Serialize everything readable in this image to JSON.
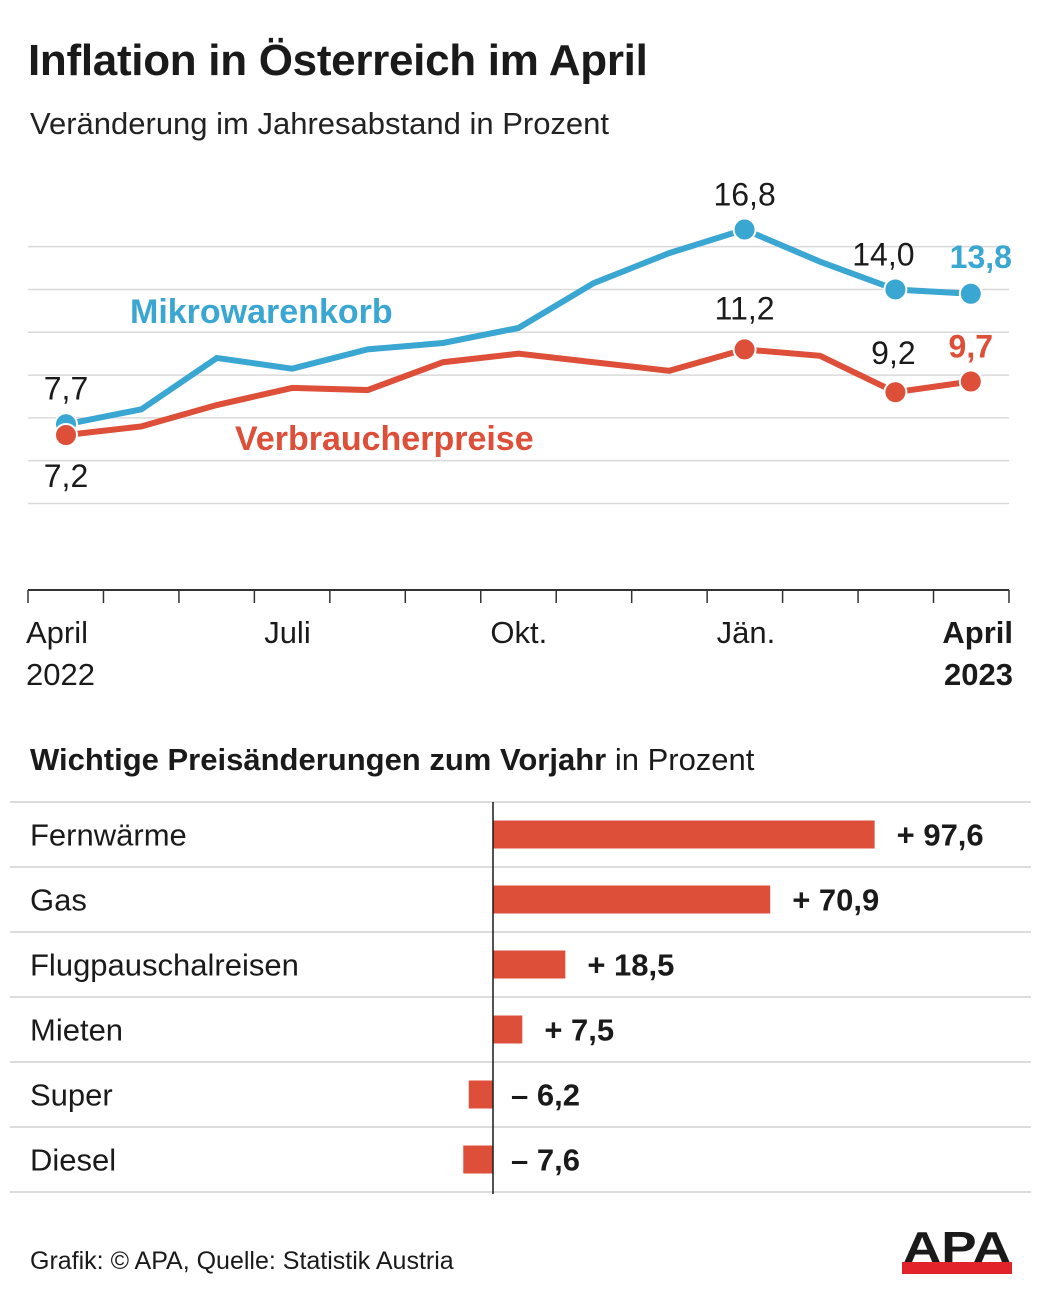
{
  "title": "Inflation in Österreich im April",
  "subtitle": "Veränderung im Jahresabstand in Prozent",
  "colors": {
    "blue": "#3aa6d2",
    "red": "#dd4f38",
    "grid": "#d9d9d9",
    "text": "#1a1a1a"
  },
  "chart_data": [
    {
      "type": "line",
      "title": "Inflation in Österreich im April",
      "subtitle": "Veränderung im Jahresabstand in Prozent",
      "x": [
        "Apr 2022",
        "Mai 2022",
        "Jun 2022",
        "Jul 2022",
        "Aug 2022",
        "Sep 2022",
        "Okt 2022",
        "Nov 2022",
        "Dez 2022",
        "Jän 2023",
        "Feb 2023",
        "Mär 2023",
        "Apr 2023"
      ],
      "xtick_labels": [
        {
          "index": 0,
          "lines": [
            "April",
            "2022"
          ],
          "bold": false
        },
        {
          "index": 3,
          "lines": [
            "Juli"
          ],
          "bold": false
        },
        {
          "index": 6,
          "lines": [
            "Okt."
          ],
          "bold": false
        },
        {
          "index": 9,
          "lines": [
            "Jän."
          ],
          "bold": false
        },
        {
          "index": 12,
          "lines": [
            "April",
            "2023"
          ],
          "bold": true
        }
      ],
      "ylim": [
        2,
        20
      ],
      "grid": true,
      "series": [
        {
          "name": "Mikrowarenkorb",
          "color": "#3aa6d2",
          "values": [
            7.7,
            8.4,
            10.8,
            10.3,
            11.2,
            11.5,
            12.2,
            14.3,
            15.7,
            16.8,
            15.3,
            14.0,
            13.8
          ],
          "labels": [
            {
              "index": 0,
              "text": "7,7",
              "bold": false,
              "colored": false
            },
            {
              "index": 9,
              "text": "16,8",
              "bold": false,
              "colored": false
            },
            {
              "index": 11,
              "text": "14,0",
              "bold": false,
              "colored": false
            },
            {
              "index": 12,
              "text": "13,8",
              "bold": true,
              "colored": true
            }
          ]
        },
        {
          "name": "Verbraucherpreise",
          "color": "#dd4f38",
          "values": [
            7.2,
            7.6,
            8.6,
            9.4,
            9.3,
            10.6,
            11.0,
            10.6,
            10.2,
            11.2,
            10.9,
            9.2,
            9.7
          ],
          "labels": [
            {
              "index": 0,
              "text": "7,2",
              "bold": false,
              "colored": false
            },
            {
              "index": 9,
              "text": "11,2",
              "bold": false,
              "colored": false
            },
            {
              "index": 11,
              "text": "9,2",
              "bold": false,
              "colored": false
            },
            {
              "index": 12,
              "text": "9,7",
              "bold": true,
              "colored": true
            }
          ]
        }
      ],
      "markers_at": [
        0,
        9,
        11,
        12
      ]
    },
    {
      "type": "bar",
      "orientation": "horizontal",
      "title": "Wichtige Preisänderungen zum Vorjahr",
      "title_suffix": "in Prozent",
      "categories": [
        "Fernwärme",
        "Gas",
        "Flugpauschalreisen",
        "Mieten",
        "Super",
        "Diesel"
      ],
      "values": [
        97.6,
        70.9,
        18.5,
        7.5,
        -6.2,
        -7.6
      ],
      "value_labels": [
        "+ 97,6",
        "+ 70,9",
        "+ 18,5",
        "+ 7,5",
        "– 6,2",
        "– 7,6"
      ],
      "color": "#dd4f38"
    }
  ],
  "footer": {
    "credit": "Grafik: © APA, Quelle: Statistik Austria",
    "logo_text": "APA"
  }
}
